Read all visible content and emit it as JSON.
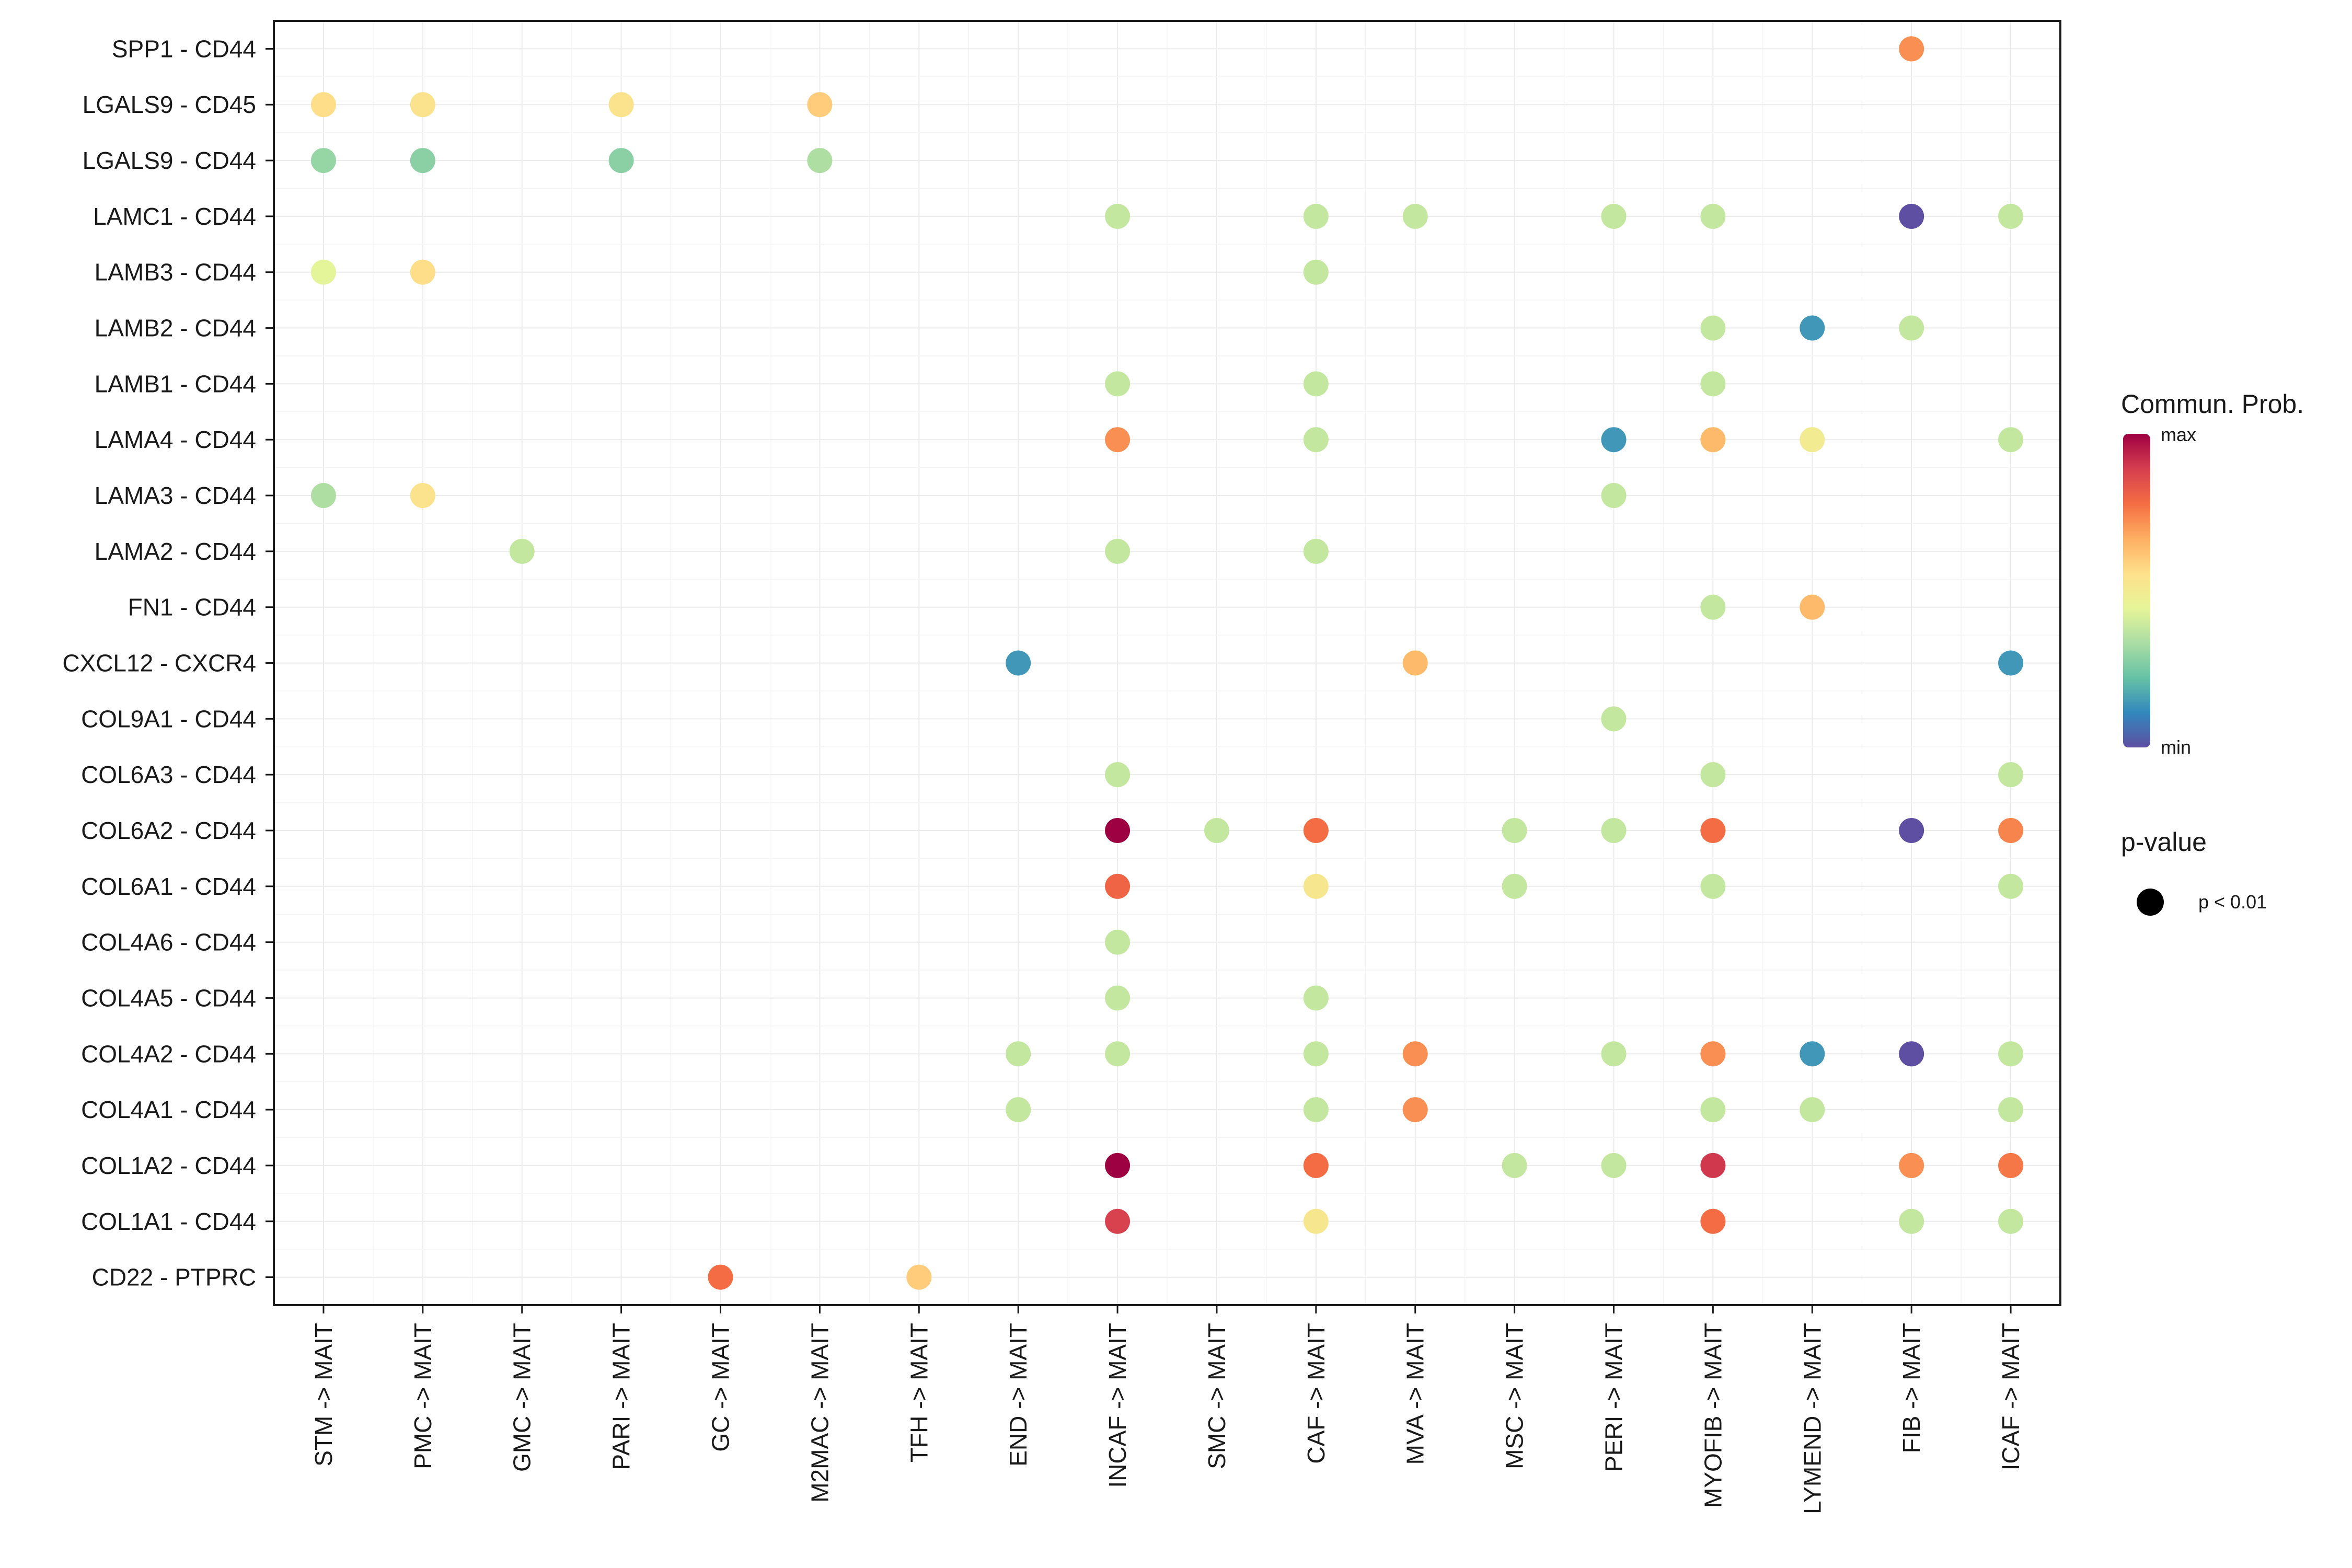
{
  "chart_data": {
    "type": "scatter",
    "subtype": "dot-plot",
    "x_categories": [
      "STM -> MAIT",
      "PMC -> MAIT",
      "GMC -> MAIT",
      "PARI -> MAIT",
      "GC -> MAIT",
      "M2MAC -> MAIT",
      "TFH -> MAIT",
      "END -> MAIT",
      "INCAF -> MAIT",
      "SMC -> MAIT",
      "CAF -> MAIT",
      "MVA -> MAIT",
      "MSC -> MAIT",
      "PERI -> MAIT",
      "MYOFIB -> MAIT",
      "LYMEND -> MAIT",
      "FIB -> MAIT",
      "ICAF -> MAIT"
    ],
    "y_categories": [
      "SPP1 - CD44",
      "LGALS9 - CD45",
      "LGALS9 - CD44",
      "LAMC1 - CD44",
      "LAMB3 - CD44",
      "LAMB2 - CD44",
      "LAMB1 - CD44",
      "LAMA4 - CD44",
      "LAMA3 - CD44",
      "LAMA2 - CD44",
      "FN1 - CD44",
      "CXCL12 - CXCR4",
      "COL9A1 - CD44",
      "COL6A3 - CD44",
      "COL6A2 - CD44",
      "COL6A1 - CD44",
      "COL4A6 - CD44",
      "COL4A5 - CD44",
      "COL4A2 - CD44",
      "COL4A1 - CD44",
      "COL1A2 - CD44",
      "COL1A1 - CD44",
      "CD22 - PTPRC"
    ],
    "value_scale": "relative communication probability, 0 = min, 1 = max",
    "points": [
      {
        "x": "FIB -> MAIT",
        "y": "SPP1 - CD44",
        "value": 0.72
      },
      {
        "x": "STM -> MAIT",
        "y": "LGALS9 - CD45",
        "value": 0.56
      },
      {
        "x": "PMC -> MAIT",
        "y": "LGALS9 - CD45",
        "value": 0.54
      },
      {
        "x": "PARI -> MAIT",
        "y": "LGALS9 - CD45",
        "value": 0.54
      },
      {
        "x": "M2MAC -> MAIT",
        "y": "LGALS9 - CD45",
        "value": 0.6
      },
      {
        "x": "STM -> MAIT",
        "y": "LGALS9 - CD44",
        "value": 0.3
      },
      {
        "x": "PMC -> MAIT",
        "y": "LGALS9 - CD44",
        "value": 0.28
      },
      {
        "x": "PARI -> MAIT",
        "y": "LGALS9 - CD44",
        "value": 0.28
      },
      {
        "x": "M2MAC -> MAIT",
        "y": "LGALS9 - CD44",
        "value": 0.34
      },
      {
        "x": "INCAF -> MAIT",
        "y": "LAMC1 - CD44",
        "value": 0.38
      },
      {
        "x": "CAF -> MAIT",
        "y": "LAMC1 - CD44",
        "value": 0.38
      },
      {
        "x": "MVA -> MAIT",
        "y": "LAMC1 - CD44",
        "value": 0.38
      },
      {
        "x": "PERI -> MAIT",
        "y": "LAMC1 - CD44",
        "value": 0.38
      },
      {
        "x": "MYOFIB -> MAIT",
        "y": "LAMC1 - CD44",
        "value": 0.38
      },
      {
        "x": "FIB -> MAIT",
        "y": "LAMC1 - CD44",
        "value": 0.0
      },
      {
        "x": "ICAF -> MAIT",
        "y": "LAMC1 - CD44",
        "value": 0.38
      },
      {
        "x": "STM -> MAIT",
        "y": "LAMB3 - CD44",
        "value": 0.44
      },
      {
        "x": "PMC -> MAIT",
        "y": "LAMB3 - CD44",
        "value": 0.56
      },
      {
        "x": "CAF -> MAIT",
        "y": "LAMB3 - CD44",
        "value": 0.38
      },
      {
        "x": "MYOFIB -> MAIT",
        "y": "LAMB2 - CD44",
        "value": 0.38
      },
      {
        "x": "LYMEND -> MAIT",
        "y": "LAMB2 - CD44",
        "value": 0.14
      },
      {
        "x": "FIB -> MAIT",
        "y": "LAMB2 - CD44",
        "value": 0.38
      },
      {
        "x": "INCAF -> MAIT",
        "y": "LAMB1 - CD44",
        "value": 0.38
      },
      {
        "x": "CAF -> MAIT",
        "y": "LAMB1 - CD44",
        "value": 0.38
      },
      {
        "x": "MYOFIB -> MAIT",
        "y": "LAMB1 - CD44",
        "value": 0.38
      },
      {
        "x": "INCAF -> MAIT",
        "y": "LAMA4 - CD44",
        "value": 0.72
      },
      {
        "x": "CAF -> MAIT",
        "y": "LAMA4 - CD44",
        "value": 0.38
      },
      {
        "x": "PERI -> MAIT",
        "y": "LAMA4 - CD44",
        "value": 0.14
      },
      {
        "x": "MYOFIB -> MAIT",
        "y": "LAMA4 - CD44",
        "value": 0.64
      },
      {
        "x": "LYMEND -> MAIT",
        "y": "LAMA4 - CD44",
        "value": 0.5
      },
      {
        "x": "ICAF -> MAIT",
        "y": "LAMA4 - CD44",
        "value": 0.38
      },
      {
        "x": "STM -> MAIT",
        "y": "LAMA3 - CD44",
        "value": 0.34
      },
      {
        "x": "PMC -> MAIT",
        "y": "LAMA3 - CD44",
        "value": 0.54
      },
      {
        "x": "PERI -> MAIT",
        "y": "LAMA3 - CD44",
        "value": 0.38
      },
      {
        "x": "GMC -> MAIT",
        "y": "LAMA2 - CD44",
        "value": 0.38
      },
      {
        "x": "INCAF -> MAIT",
        "y": "LAMA2 - CD44",
        "value": 0.38
      },
      {
        "x": "CAF -> MAIT",
        "y": "LAMA2 - CD44",
        "value": 0.38
      },
      {
        "x": "MYOFIB -> MAIT",
        "y": "FN1 - CD44",
        "value": 0.38
      },
      {
        "x": "LYMEND -> MAIT",
        "y": "FN1 - CD44",
        "value": 0.64
      },
      {
        "x": "END -> MAIT",
        "y": "CXCL12 - CXCR4",
        "value": 0.14
      },
      {
        "x": "MVA -> MAIT",
        "y": "CXCL12 - CXCR4",
        "value": 0.64
      },
      {
        "x": "ICAF -> MAIT",
        "y": "CXCL12 - CXCR4",
        "value": 0.14
      },
      {
        "x": "PERI -> MAIT",
        "y": "COL9A1 - CD44",
        "value": 0.38
      },
      {
        "x": "INCAF -> MAIT",
        "y": "COL6A3 - CD44",
        "value": 0.38
      },
      {
        "x": "MYOFIB -> MAIT",
        "y": "COL6A3 - CD44",
        "value": 0.38
      },
      {
        "x": "ICAF -> MAIT",
        "y": "COL6A3 - CD44",
        "value": 0.38
      },
      {
        "x": "INCAF -> MAIT",
        "y": "COL6A2 - CD44",
        "value": 1.0
      },
      {
        "x": "SMC -> MAIT",
        "y": "COL6A2 - CD44",
        "value": 0.38
      },
      {
        "x": "CAF -> MAIT",
        "y": "COL6A2 - CD44",
        "value": 0.78
      },
      {
        "x": "MSC -> MAIT",
        "y": "COL6A2 - CD44",
        "value": 0.38
      },
      {
        "x": "PERI -> MAIT",
        "y": "COL6A2 - CD44",
        "value": 0.38
      },
      {
        "x": "MYOFIB -> MAIT",
        "y": "COL6A2 - CD44",
        "value": 0.78
      },
      {
        "x": "FIB -> MAIT",
        "y": "COL6A2 - CD44",
        "value": 0.0
      },
      {
        "x": "ICAF -> MAIT",
        "y": "COL6A2 - CD44",
        "value": 0.74
      },
      {
        "x": "INCAF -> MAIT",
        "y": "COL6A1 - CD44",
        "value": 0.8
      },
      {
        "x": "CAF -> MAIT",
        "y": "COL6A1 - CD44",
        "value": 0.52
      },
      {
        "x": "MSC -> MAIT",
        "y": "COL6A1 - CD44",
        "value": 0.38
      },
      {
        "x": "MYOFIB -> MAIT",
        "y": "COL6A1 - CD44",
        "value": 0.38
      },
      {
        "x": "ICAF -> MAIT",
        "y": "COL6A1 - CD44",
        "value": 0.38
      },
      {
        "x": "INCAF -> MAIT",
        "y": "COL4A6 - CD44",
        "value": 0.38
      },
      {
        "x": "INCAF -> MAIT",
        "y": "COL4A5 - CD44",
        "value": 0.38
      },
      {
        "x": "CAF -> MAIT",
        "y": "COL4A5 - CD44",
        "value": 0.38
      },
      {
        "x": "END -> MAIT",
        "y": "COL4A2 - CD44",
        "value": 0.38
      },
      {
        "x": "INCAF -> MAIT",
        "y": "COL4A2 - CD44",
        "value": 0.38
      },
      {
        "x": "CAF -> MAIT",
        "y": "COL4A2 - CD44",
        "value": 0.38
      },
      {
        "x": "MVA -> MAIT",
        "y": "COL4A2 - CD44",
        "value": 0.72
      },
      {
        "x": "PERI -> MAIT",
        "y": "COL4A2 - CD44",
        "value": 0.38
      },
      {
        "x": "MYOFIB -> MAIT",
        "y": "COL4A2 - CD44",
        "value": 0.72
      },
      {
        "x": "LYMEND -> MAIT",
        "y": "COL4A2 - CD44",
        "value": 0.14
      },
      {
        "x": "FIB -> MAIT",
        "y": "COL4A2 - CD44",
        "value": 0.0
      },
      {
        "x": "ICAF -> MAIT",
        "y": "COL4A2 - CD44",
        "value": 0.38
      },
      {
        "x": "END -> MAIT",
        "y": "COL4A1 - CD44",
        "value": 0.38
      },
      {
        "x": "CAF -> MAIT",
        "y": "COL4A1 - CD44",
        "value": 0.38
      },
      {
        "x": "MVA -> MAIT",
        "y": "COL4A1 - CD44",
        "value": 0.72
      },
      {
        "x": "MYOFIB -> MAIT",
        "y": "COL4A1 - CD44",
        "value": 0.38
      },
      {
        "x": "LYMEND -> MAIT",
        "y": "COL4A1 - CD44",
        "value": 0.38
      },
      {
        "x": "ICAF -> MAIT",
        "y": "COL4A1 - CD44",
        "value": 0.38
      },
      {
        "x": "INCAF -> MAIT",
        "y": "COL1A2 - CD44",
        "value": 1.0
      },
      {
        "x": "CAF -> MAIT",
        "y": "COL1A2 - CD44",
        "value": 0.78
      },
      {
        "x": "MSC -> MAIT",
        "y": "COL1A2 - CD44",
        "value": 0.38
      },
      {
        "x": "PERI -> MAIT",
        "y": "COL1A2 - CD44",
        "value": 0.38
      },
      {
        "x": "MYOFIB -> MAIT",
        "y": "COL1A2 - CD44",
        "value": 0.9
      },
      {
        "x": "FIB -> MAIT",
        "y": "COL1A2 - CD44",
        "value": 0.72
      },
      {
        "x": "ICAF -> MAIT",
        "y": "COL1A2 - CD44",
        "value": 0.76
      },
      {
        "x": "INCAF -> MAIT",
        "y": "COL1A1 - CD44",
        "value": 0.88
      },
      {
        "x": "CAF -> MAIT",
        "y": "COL1A1 - CD44",
        "value": 0.52
      },
      {
        "x": "MYOFIB -> MAIT",
        "y": "COL1A1 - CD44",
        "value": 0.78
      },
      {
        "x": "FIB -> MAIT",
        "y": "COL1A1 - CD44",
        "value": 0.38
      },
      {
        "x": "ICAF -> MAIT",
        "y": "COL1A1 - CD44",
        "value": 0.38
      },
      {
        "x": "GC -> MAIT",
        "y": "CD22 - PTPRC",
        "value": 0.78
      },
      {
        "x": "TFH -> MAIT",
        "y": "CD22 - PTPRC",
        "value": 0.6
      }
    ],
    "legend": {
      "color_title": "Commun. Prob.",
      "color_max_label": "max",
      "color_min_label": "min",
      "size_title": "p-value",
      "size_label": "p < 0.01",
      "placement": "right"
    },
    "palette": [
      "#5e4fa2",
      "#3288bd",
      "#66c2a5",
      "#abdda4",
      "#e6f598",
      "#fee08b",
      "#fdae61",
      "#f46d43",
      "#d53e4f",
      "#9e0142"
    ],
    "grid": true
  }
}
